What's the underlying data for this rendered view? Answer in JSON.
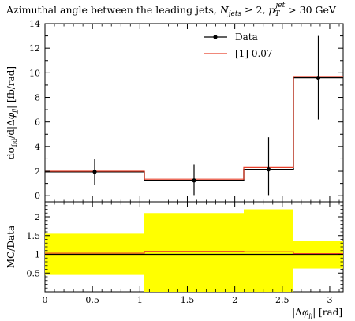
{
  "chart_data": [
    {
      "type": "line",
      "title": "Azimuthal angle between the leading jets, N_jets ≥ 2, p_T^jet > 30 GeV",
      "ylabel": "dσ_fid/d|Δφ_jj| [fb/rad]",
      "xlim": [
        0,
        3.1416
      ],
      "ylim": [
        -0.5,
        14
      ],
      "yticks": [
        0,
        2,
        4,
        6,
        8,
        10,
        12,
        14
      ],
      "bin_edges": [
        0,
        1.0472,
        2.0944,
        2.618,
        3.1416
      ],
      "series": [
        {
          "name": "Data",
          "style": "points",
          "color": "#000000",
          "x": [
            0.5236,
            1.5708,
            2.3562,
            2.8798
          ],
          "y": [
            1.95,
            1.25,
            2.15,
            9.6
          ],
          "yerr_low": [
            1.05,
            1.2,
            2.1,
            3.4
          ],
          "yerr_high": [
            1.05,
            1.3,
            2.6,
            3.4
          ]
        },
        {
          "name": "[1] 0.07",
          "style": "step",
          "color": "#e8412b",
          "values": [
            2.0,
            1.35,
            2.3,
            9.7
          ]
        },
        {
          "name": "",
          "style": "step",
          "color": "#000000",
          "values": [
            1.95,
            1.25,
            2.15,
            9.6
          ]
        }
      ],
      "legend_position": "top-right"
    },
    {
      "type": "area",
      "ylabel": "MC/Data",
      "xlabel": "|Δφ_jj| [rad]",
      "xlim": [
        0,
        3.1416
      ],
      "ylim": [
        0,
        2.4
      ],
      "xticks": [
        0,
        0.5,
        1,
        1.5,
        2,
        2.5,
        3
      ],
      "yticks": [
        0.5,
        1,
        1.5,
        2
      ],
      "bin_edges": [
        0,
        1.0472,
        2.0944,
        2.618,
        3.1416
      ],
      "band": {
        "color": "#ffff00",
        "low": [
          0.45,
          0.0,
          0.0,
          0.62
        ],
        "high": [
          1.55,
          2.1,
          2.2,
          1.35
        ]
      },
      "series": [
        {
          "name": "[1] 0.07",
          "style": "step",
          "color": "#e8412b",
          "values": [
            1.03,
            1.08,
            1.07,
            1.02
          ]
        },
        {
          "name": "",
          "style": "step",
          "color": "#000000",
          "values": [
            1.0,
            1.0,
            1.0,
            1.0
          ]
        }
      ]
    }
  ]
}
